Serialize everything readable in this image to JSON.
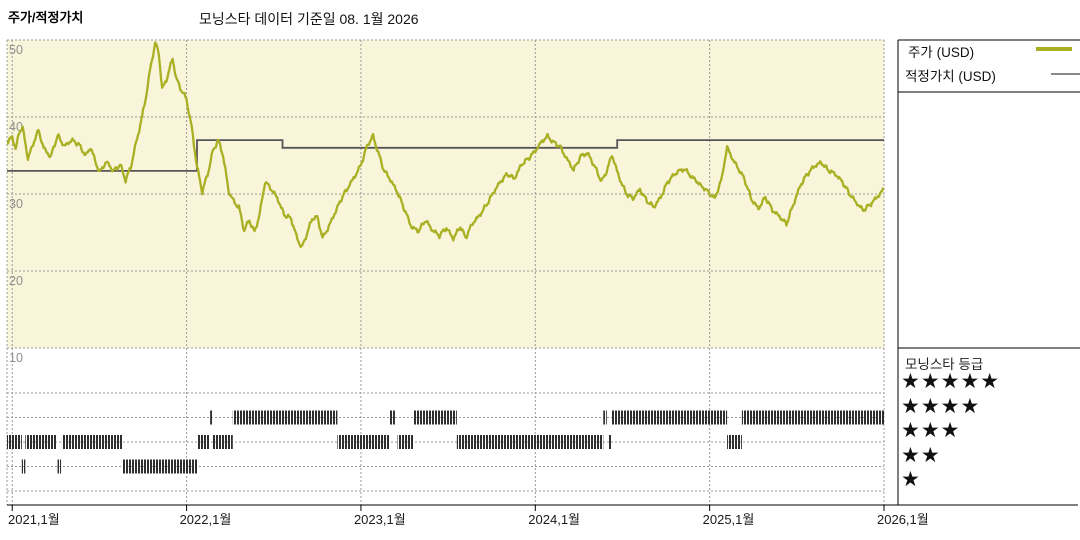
{
  "header": {
    "title": "주가/적정가치",
    "subtitle": "모닝스타 데이터 기준일 08. 1월 2026"
  },
  "legend": {
    "price_label": "주가 (USD)",
    "fair_value_label": "적정가치 (USD)"
  },
  "rating_legend": {
    "title": "모닝스타 등급",
    "star_icon": "★",
    "rows": [
      5,
      4,
      3,
      2,
      1
    ]
  },
  "colors": {
    "plot_bg": "#f8f5da",
    "grid": "#999999",
    "price": "#aab024",
    "fair_value": "#555555",
    "fair_value_swatch": "#8a8a8a",
    "rating_bar": "#2f2f2f",
    "axis": "#000000",
    "y_label": "#8f8f8f",
    "x_label": "#1a1a1a"
  },
  "chart_data": {
    "type": "line",
    "title": "주가/적정가치",
    "subtitle": "모닝스타 데이터 기준일 08. 1월 2026",
    "grid": true,
    "legend_position": "top-right",
    "x_axis": {
      "range_years": [
        2020.97,
        2026.0
      ],
      "ticks": [
        {
          "year": 2021,
          "label": "2021,1월"
        },
        {
          "year": 2022,
          "label": "2022,1월"
        },
        {
          "year": 2023,
          "label": "2023,1월"
        },
        {
          "year": 2024,
          "label": "2024,1월"
        },
        {
          "year": 2025,
          "label": "2025,1월"
        },
        {
          "year": 2026,
          "label": "2026,1월"
        }
      ]
    },
    "y_axis": {
      "unit": "USD",
      "ticks": [
        50,
        40,
        30,
        20,
        10
      ],
      "range": [
        10,
        50
      ]
    },
    "series": [
      {
        "name": "주가 (USD)",
        "points": [
          [
            2020.97,
            36.5
          ],
          [
            2021.0,
            37.5
          ],
          [
            2021.02,
            35.8
          ],
          [
            2021.04,
            38.0
          ],
          [
            2021.06,
            38.6
          ],
          [
            2021.09,
            34.6
          ],
          [
            2021.12,
            36.5
          ],
          [
            2021.15,
            38.3
          ],
          [
            2021.18,
            36.0
          ],
          [
            2021.22,
            34.8
          ],
          [
            2021.26,
            37.6
          ],
          [
            2021.3,
            36.2
          ],
          [
            2021.34,
            37.0
          ],
          [
            2021.38,
            36.5
          ],
          [
            2021.42,
            35.0
          ],
          [
            2021.45,
            36.0
          ],
          [
            2021.5,
            32.8
          ],
          [
            2021.54,
            34.2
          ],
          [
            2021.58,
            33.0
          ],
          [
            2021.62,
            33.8
          ],
          [
            2021.65,
            31.8
          ],
          [
            2021.68,
            33.5
          ],
          [
            2021.71,
            36.6
          ],
          [
            2021.74,
            39.5
          ],
          [
            2021.77,
            43.0
          ],
          [
            2021.79,
            46.0
          ],
          [
            2021.82,
            49.7
          ],
          [
            2021.84,
            48.3
          ],
          [
            2021.86,
            43.6
          ],
          [
            2021.89,
            45.2
          ],
          [
            2021.92,
            47.7
          ],
          [
            2021.94,
            45.0
          ],
          [
            2021.97,
            43.5
          ],
          [
            2022.0,
            42.3
          ],
          [
            2022.03,
            38.5
          ],
          [
            2022.06,
            33.5
          ],
          [
            2022.09,
            30.3
          ],
          [
            2022.12,
            32.5
          ],
          [
            2022.15,
            35.5
          ],
          [
            2022.18,
            37.0
          ],
          [
            2022.21,
            35.0
          ],
          [
            2022.24,
            30.5
          ],
          [
            2022.27,
            29.0
          ],
          [
            2022.3,
            28.3
          ],
          [
            2022.33,
            25.3
          ],
          [
            2022.36,
            26.6
          ],
          [
            2022.39,
            25.0
          ],
          [
            2022.42,
            27.5
          ],
          [
            2022.45,
            31.6
          ],
          [
            2022.48,
            30.8
          ],
          [
            2022.52,
            29.5
          ],
          [
            2022.56,
            27.3
          ],
          [
            2022.6,
            26.8
          ],
          [
            2022.63,
            24.5
          ],
          [
            2022.66,
            23.0
          ],
          [
            2022.69,
            24.8
          ],
          [
            2022.72,
            26.8
          ],
          [
            2022.75,
            27.0
          ],
          [
            2022.78,
            24.3
          ],
          [
            2022.81,
            25.5
          ],
          [
            2022.85,
            27.5
          ],
          [
            2022.89,
            29.5
          ],
          [
            2022.93,
            31.0
          ],
          [
            2022.97,
            32.5
          ],
          [
            2023.0,
            33.8
          ],
          [
            2023.04,
            36.5
          ],
          [
            2023.07,
            37.5
          ],
          [
            2023.1,
            35.3
          ],
          [
            2023.13,
            33.2
          ],
          [
            2023.17,
            31.8
          ],
          [
            2023.21,
            30.2
          ],
          [
            2023.25,
            28.0
          ],
          [
            2023.29,
            25.7
          ],
          [
            2023.33,
            25.2
          ],
          [
            2023.37,
            26.6
          ],
          [
            2023.41,
            25.3
          ],
          [
            2023.45,
            24.6
          ],
          [
            2023.49,
            25.6
          ],
          [
            2023.53,
            24.2
          ],
          [
            2023.57,
            25.8
          ],
          [
            2023.6,
            24.3
          ],
          [
            2023.64,
            26.2
          ],
          [
            2023.68,
            27.2
          ],
          [
            2023.72,
            28.6
          ],
          [
            2023.76,
            30.2
          ],
          [
            2023.8,
            31.6
          ],
          [
            2023.84,
            32.6
          ],
          [
            2023.88,
            32.0
          ],
          [
            2023.92,
            33.8
          ],
          [
            2023.96,
            34.6
          ],
          [
            2024.0,
            35.6
          ],
          [
            2024.04,
            36.9
          ],
          [
            2024.07,
            37.5
          ],
          [
            2024.1,
            36.8
          ],
          [
            2024.14,
            36.2
          ],
          [
            2024.18,
            34.6
          ],
          [
            2024.22,
            33.1
          ],
          [
            2024.26,
            34.9
          ],
          [
            2024.3,
            35.3
          ],
          [
            2024.34,
            33.6
          ],
          [
            2024.38,
            31.6
          ],
          [
            2024.41,
            33.0
          ],
          [
            2024.44,
            35.1
          ],
          [
            2024.48,
            32.2
          ],
          [
            2024.52,
            30.1
          ],
          [
            2024.56,
            29.4
          ],
          [
            2024.6,
            30.6
          ],
          [
            2024.64,
            29.1
          ],
          [
            2024.68,
            28.3
          ],
          [
            2024.72,
            29.6
          ],
          [
            2024.76,
            31.6
          ],
          [
            2024.8,
            32.6
          ],
          [
            2024.85,
            33.3
          ],
          [
            2024.9,
            32.2
          ],
          [
            2024.95,
            31.1
          ],
          [
            2025.0,
            30.1
          ],
          [
            2025.03,
            29.4
          ],
          [
            2025.07,
            32.1
          ],
          [
            2025.1,
            36.1
          ],
          [
            2025.13,
            34.6
          ],
          [
            2025.17,
            33.1
          ],
          [
            2025.2,
            31.9
          ],
          [
            2025.24,
            29.3
          ],
          [
            2025.28,
            28.1
          ],
          [
            2025.32,
            29.6
          ],
          [
            2025.36,
            27.9
          ],
          [
            2025.4,
            27.1
          ],
          [
            2025.44,
            26.1
          ],
          [
            2025.48,
            28.6
          ],
          [
            2025.52,
            31.1
          ],
          [
            2025.56,
            32.6
          ],
          [
            2025.6,
            33.6
          ],
          [
            2025.64,
            34.1
          ],
          [
            2025.68,
            33.1
          ],
          [
            2025.72,
            32.6
          ],
          [
            2025.76,
            31.6
          ],
          [
            2025.8,
            30.1
          ],
          [
            2025.84,
            28.9
          ],
          [
            2025.88,
            27.9
          ],
          [
            2025.92,
            28.6
          ],
          [
            2025.96,
            29.6
          ],
          [
            2026.0,
            30.6
          ]
        ]
      },
      {
        "name": "적정가치 (USD)",
        "points": [
          [
            2020.97,
            33.0
          ],
          [
            2022.06,
            33.0
          ],
          [
            2022.06,
            37.0
          ],
          [
            2022.55,
            37.0
          ],
          [
            2022.55,
            36.0
          ],
          [
            2024.47,
            36.0
          ],
          [
            2024.47,
            37.0
          ],
          [
            2026.0,
            37.0
          ]
        ]
      }
    ],
    "rating_timeline": {
      "levels": [
        5,
        4,
        3,
        2,
        1
      ],
      "segments": [
        {
          "start": 2020.97,
          "end": 2021.055,
          "stars": 3
        },
        {
          "start": 2021.055,
          "end": 2021.075,
          "stars": 2
        },
        {
          "start": 2021.075,
          "end": 2021.255,
          "stars": 3
        },
        {
          "start": 2021.26,
          "end": 2021.28,
          "stars": 2
        },
        {
          "start": 2021.285,
          "end": 2021.635,
          "stars": 3
        },
        {
          "start": 2021.635,
          "end": 2022.06,
          "stars": 2
        },
        {
          "start": 2022.06,
          "end": 2022.13,
          "stars": 3
        },
        {
          "start": 2022.135,
          "end": 2022.15,
          "stars": 4
        },
        {
          "start": 2022.15,
          "end": 2022.265,
          "stars": 3
        },
        {
          "start": 2022.265,
          "end": 2022.865,
          "stars": 4
        },
        {
          "start": 2022.865,
          "end": 2023.165,
          "stars": 3
        },
        {
          "start": 2023.165,
          "end": 2023.195,
          "stars": 4
        },
        {
          "start": 2023.21,
          "end": 2023.3,
          "stars": 3
        },
        {
          "start": 2023.3,
          "end": 2023.55,
          "stars": 4
        },
        {
          "start": 2023.55,
          "end": 2024.39,
          "stars": 3
        },
        {
          "start": 2024.39,
          "end": 2024.41,
          "stars": 4
        },
        {
          "start": 2024.42,
          "end": 2024.435,
          "stars": 3
        },
        {
          "start": 2024.44,
          "end": 2025.1,
          "stars": 4
        },
        {
          "start": 2025.1,
          "end": 2025.185,
          "stars": 3
        },
        {
          "start": 2025.185,
          "end": 2026.0,
          "stars": 4
        }
      ]
    }
  }
}
